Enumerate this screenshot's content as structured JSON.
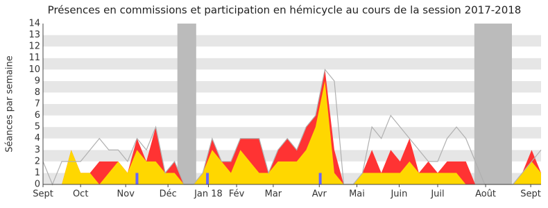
{
  "chart_data": {
    "type": "area",
    "title": "Présences en commissions et participation en hémicycle au cours de la session 2017-2018",
    "y_label": "Séances par semaine",
    "x": [
      0,
      1,
      2,
      3,
      4,
      5,
      6,
      7,
      8,
      9,
      10,
      11,
      12,
      13,
      14,
      15,
      16,
      17,
      18,
      19,
      20,
      21,
      22,
      23,
      24,
      25,
      26,
      27,
      28,
      29,
      30,
      31,
      32,
      33,
      34,
      35,
      36,
      37,
      38,
      39,
      40,
      41,
      42,
      43,
      44,
      45,
      46,
      47,
      48,
      49,
      50,
      51,
      52,
      53
    ],
    "xlim": [
      0,
      53
    ],
    "xticks": [
      {
        "value": 0,
        "label": "Sept"
      },
      {
        "value": 4,
        "label": "Oct"
      },
      {
        "value": 8.8,
        "label": "Nov"
      },
      {
        "value": 13.3,
        "label": "Déc"
      },
      {
        "value": 17.6,
        "label": "Jan 18"
      },
      {
        "value": 20.6,
        "label": "Fév"
      },
      {
        "value": 24.5,
        "label": "Mar"
      },
      {
        "value": 29.4,
        "label": "Avr"
      },
      {
        "value": 33.4,
        "label": "Mai"
      },
      {
        "value": 37.9,
        "label": "Juin"
      },
      {
        "value": 42,
        "label": "Juil"
      },
      {
        "value": 47.1,
        "label": "Août"
      },
      {
        "value": 51.9,
        "label": "Sept"
      }
    ],
    "ylim": [
      0,
      14
    ],
    "yticks": [
      0,
      1,
      2,
      3,
      4,
      5,
      6,
      7,
      8,
      9,
      10,
      11,
      12,
      13,
      14
    ],
    "grid": true,
    "shaded_ranges": [
      [
        14.3,
        16.3
      ],
      [
        45.9,
        49.9
      ]
    ],
    "shade_color": "#bbbbbb",
    "series": [
      {
        "type": "area",
        "color": "#ff3333",
        "values": [
          0,
          0,
          0,
          3,
          1,
          1,
          2,
          2,
          2,
          1,
          4,
          2,
          5,
          1,
          2,
          0,
          0,
          1,
          4,
          2,
          2,
          4,
          4,
          4,
          1,
          3,
          4,
          3,
          5,
          6,
          10,
          3,
          0,
          0,
          1,
          3,
          1,
          3,
          2,
          4,
          1,
          2,
          1,
          2,
          2,
          2,
          0,
          0,
          0,
          0,
          0,
          1,
          3,
          1
        ]
      },
      {
        "type": "area",
        "color": "#ffd700",
        "values": [
          0,
          0,
          0,
          3,
          1,
          1,
          0,
          1,
          2,
          1,
          3,
          2,
          2,
          1,
          1,
          0,
          0,
          1,
          3,
          2,
          1,
          3,
          2,
          1,
          1,
          2,
          2,
          2,
          3,
          5,
          9,
          1,
          0,
          0,
          1,
          1,
          1,
          1,
          1,
          2,
          1,
          1,
          1,
          1,
          1,
          0,
          0,
          0,
          0,
          0,
          0,
          1,
          2,
          1
        ]
      },
      {
        "type": "line",
        "color": "#b0b0b0",
        "values": [
          2,
          0,
          2,
          2,
          2,
          3,
          4,
          3,
          3,
          2,
          4,
          3,
          5,
          1,
          2,
          0,
          0,
          1,
          4,
          2,
          2,
          4,
          4,
          4,
          1,
          3,
          4,
          3,
          5,
          6,
          10,
          9,
          0,
          0,
          1,
          5,
          4,
          6,
          5,
          4,
          3,
          2,
          2,
          4,
          5,
          4,
          2,
          0,
          0,
          0,
          0,
          1,
          2,
          3
        ]
      },
      {
        "type": "bar",
        "color": "#6666ff",
        "x": [
          10,
          17.5,
          29.5
        ],
        "values": [
          1,
          1,
          1
        ]
      }
    ]
  }
}
